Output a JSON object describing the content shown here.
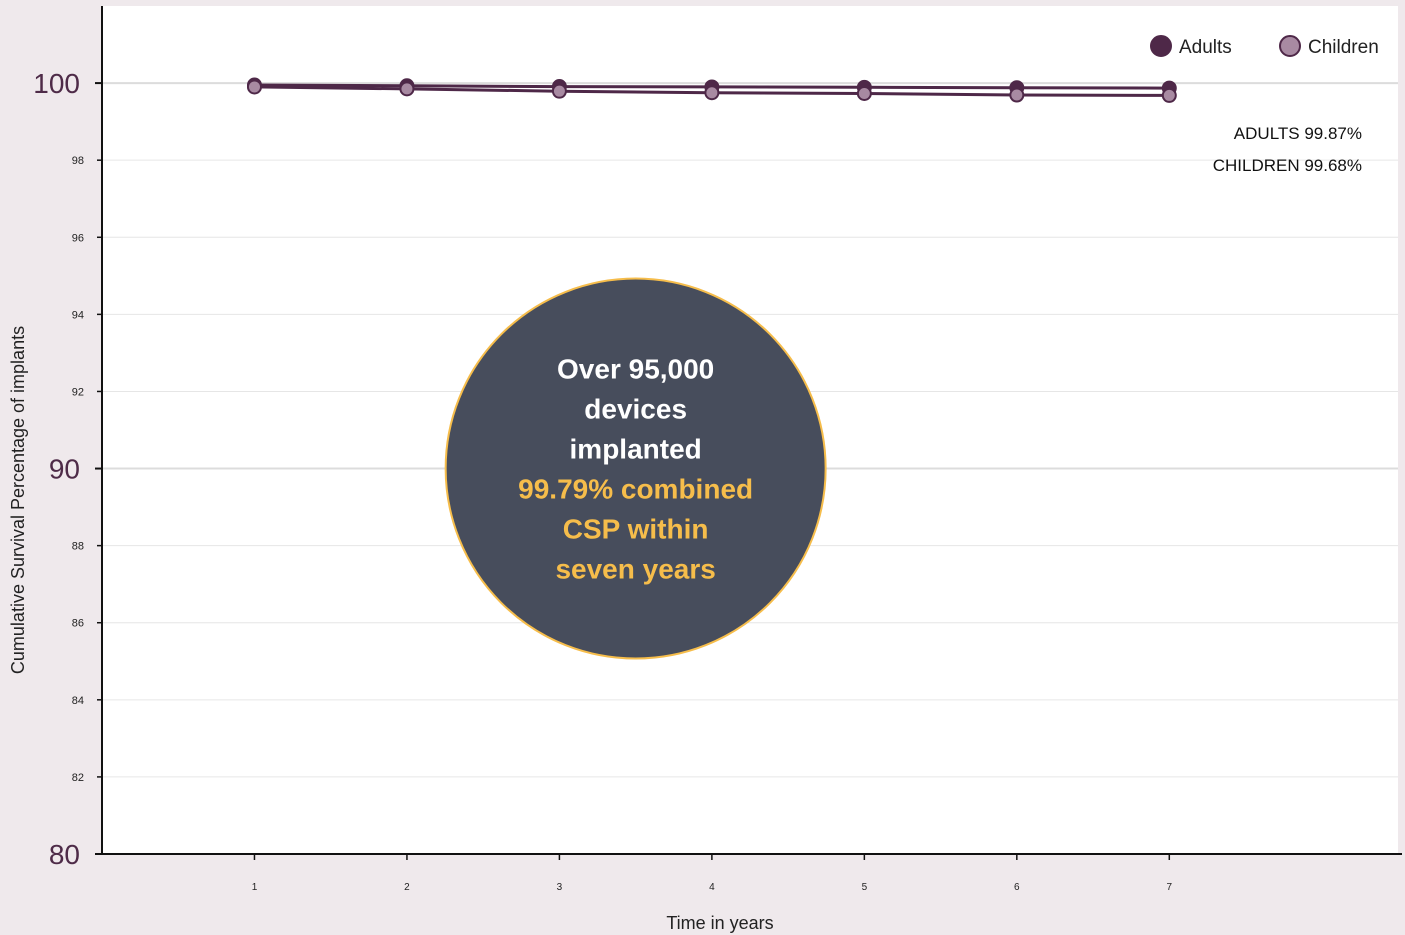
{
  "chart_data": {
    "type": "line",
    "x": [
      1,
      2,
      3,
      4,
      5,
      6,
      7
    ],
    "series": [
      {
        "name": "Adults",
        "color": "#4e2848",
        "values": [
          99.95,
          99.93,
          99.91,
          99.9,
          99.89,
          99.88,
          99.87
        ]
      },
      {
        "name": "Children",
        "color": "#a88aa2",
        "values": [
          99.9,
          99.85,
          99.79,
          99.75,
          99.73,
          99.69,
          99.68
        ]
      }
    ],
    "xlabel": "Time in years",
    "ylabel": "Cumulative Survival Percentage of implants",
    "ylim": [
      80,
      102
    ],
    "xlim": [
      0,
      8.5
    ],
    "y_major_ticks": [
      80,
      90,
      100
    ],
    "y_minor_ticks": [
      82,
      84,
      86,
      88,
      92,
      94,
      96,
      98
    ],
    "x_ticks": [
      1,
      2,
      3,
      4,
      5,
      6,
      7
    ],
    "grid": true,
    "legend": {
      "position": "top-right",
      "entries": [
        "Adults",
        "Children"
      ]
    },
    "annotations": {
      "adults_final": "ADULTS 99.87%",
      "children_final": "CHILDREN 99.68%"
    },
    "callout": {
      "lines_white": [
        "Over 95,000",
        "devices",
        "implanted"
      ],
      "lines_gold": [
        "99.79% combined",
        "CSP within",
        "seven years"
      ],
      "fill_color": "#474d5c",
      "border_color": "#f6bd4b",
      "center_x": 3.5,
      "center_y": 90
    }
  }
}
